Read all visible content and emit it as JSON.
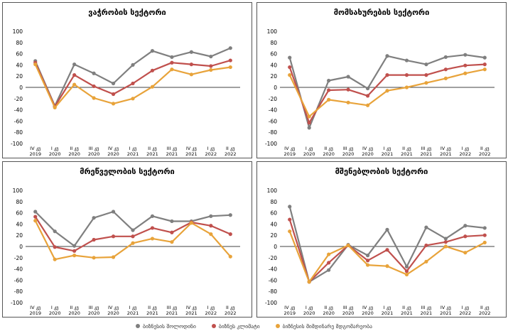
{
  "legend": [
    {
      "label": "ბიზნესის შოლოდინი",
      "color": "#7f7f7f"
    },
    {
      "label": "ბიზნეს კლიმატი",
      "color": "#c0504d"
    },
    {
      "label": "ბიზნესის მიმდინარე მდგომარეობა",
      "color": "#e8a33a"
    }
  ],
  "chart_data": [
    {
      "type": "line",
      "title": "ვაჭრობის სექტორი",
      "categories": [
        "IV კვ 2019",
        "I კვ 2020",
        "II კვ 2020",
        "III კვ 2020",
        "IV კვ 2020",
        "I კვ 2021",
        "II კვ 2021",
        "III კვ 2021",
        "IV კვ 2021",
        "I კვ 2022",
        "II კვ 2022"
      ],
      "ylim": [
        -100,
        100
      ],
      "yticks": [
        100,
        80,
        60,
        40,
        20,
        0,
        -20,
        -40,
        -60,
        -80,
        -100
      ],
      "series": [
        {
          "name": "ბიზნესის შოლოდინი",
          "color": "#7f7f7f",
          "values": [
            47,
            -33,
            41,
            25,
            7,
            40,
            65,
            54,
            63,
            55,
            70
          ]
        },
        {
          "name": "ბიზნეს კლიმატი",
          "color": "#c0504d",
          "values": [
            44,
            -34,
            22,
            2,
            -12,
            7,
            30,
            44,
            41,
            38,
            48
          ]
        },
        {
          "name": "ბიზნესის მიმდინარე მდგომარეობა",
          "color": "#e8a33a",
          "values": [
            41,
            -36,
            5,
            -19,
            -29,
            -20,
            1,
            32,
            23,
            31,
            36
          ]
        }
      ]
    },
    {
      "type": "line",
      "title": "მომსახურების სექტორი",
      "categories": [
        "IV კვ 2019",
        "I კვ 2020",
        "II კვ 2020",
        "III კვ 2020",
        "IV კვ 2020",
        "I კვ 2021",
        "II კვ 2021",
        "III კვ 2021",
        "IV კვ 2021",
        "I კვ 2022",
        "II კვ 2022"
      ],
      "ylim": [
        -100,
        100
      ],
      "yticks": [
        100,
        80,
        60,
        40,
        20,
        0,
        -20,
        -40,
        -60,
        -80,
        -100
      ],
      "series": [
        {
          "name": "ბიზნესის შოლოდინი",
          "color": "#7f7f7f",
          "values": [
            53,
            -72,
            12,
            19,
            -2,
            56,
            48,
            41,
            54,
            58,
            53
          ]
        },
        {
          "name": "ბიზნეს კლიმატი",
          "color": "#c0504d",
          "values": [
            36,
            -63,
            -5,
            -4,
            -15,
            22,
            22,
            22,
            32,
            39,
            41
          ]
        },
        {
          "name": "ბიზნესის მიმდინარე მდგომარეობა",
          "color": "#e8a33a",
          "values": [
            22,
            -52,
            -22,
            -27,
            -32,
            -6,
            0,
            8,
            16,
            25,
            32
          ]
        }
      ]
    },
    {
      "type": "line",
      "title": "მრეწველობის სექტორი",
      "categories": [
        "IV კვ 2019",
        "I კვ 2020",
        "II კვ 2020",
        "III კვ 2020",
        "IV კვ 2020",
        "I კვ 2021",
        "II კვ 2021",
        "III კვ 2021",
        "IV კვ 2021",
        "I კვ 2022",
        "II კვ 2022"
      ],
      "ylim": [
        -100,
        100
      ],
      "yticks": [
        100,
        80,
        60,
        40,
        20,
        0,
        -20,
        -40,
        -60,
        -80,
        -100
      ],
      "series": [
        {
          "name": "ბიზნესის შოლოდინი",
          "color": "#7f7f7f",
          "values": [
            62,
            27,
            1,
            51,
            62,
            29,
            54,
            45,
            45,
            54,
            56
          ]
        },
        {
          "name": "ბიზნეს კლიმატი",
          "color": "#c0504d",
          "values": [
            53,
            -1,
            -8,
            12,
            18,
            18,
            33,
            25,
            43,
            37,
            22
          ]
        },
        {
          "name": "ბიზნესის მიმდინარე მდგომარეობა",
          "color": "#e8a33a",
          "values": [
            46,
            -23,
            -16,
            -20,
            -19,
            6,
            14,
            8,
            42,
            22,
            -18
          ]
        }
      ]
    },
    {
      "type": "line",
      "title": "მშენებლობის სექტორი",
      "categories": [
        "IV კვ 2019",
        "I კვ 2020",
        "II კვ 2020",
        "III კვ 2020",
        "IV კვ 2020",
        "I კვ 2021",
        "II კვ 2021",
        "III კვ 2021",
        "IV კვ 2021",
        "I კვ 2022",
        "II კვ 2022"
      ],
      "ylim": [
        -100,
        100
      ],
      "yticks": [
        100,
        80,
        60,
        40,
        20,
        0,
        -20,
        -40,
        -60,
        -80,
        -100
      ],
      "series": [
        {
          "name": "ბიზნესის შოლოდინი",
          "color": "#7f7f7f",
          "values": [
            71,
            -63,
            -42,
            3,
            -16,
            30,
            -36,
            34,
            14,
            37,
            33
          ]
        },
        {
          "name": "ბიზნეს კლიმატი",
          "color": "#c0504d",
          "values": [
            48,
            -63,
            -29,
            2,
            -25,
            -6,
            -44,
            2,
            8,
            18,
            20
          ]
        },
        {
          "name": "ბიზნესის მიმდინარე მდგომარეობა",
          "color": "#e8a33a",
          "values": [
            27,
            -63,
            -14,
            2,
            -33,
            -35,
            -50,
            -27,
            0,
            -11,
            7
          ]
        }
      ]
    }
  ]
}
